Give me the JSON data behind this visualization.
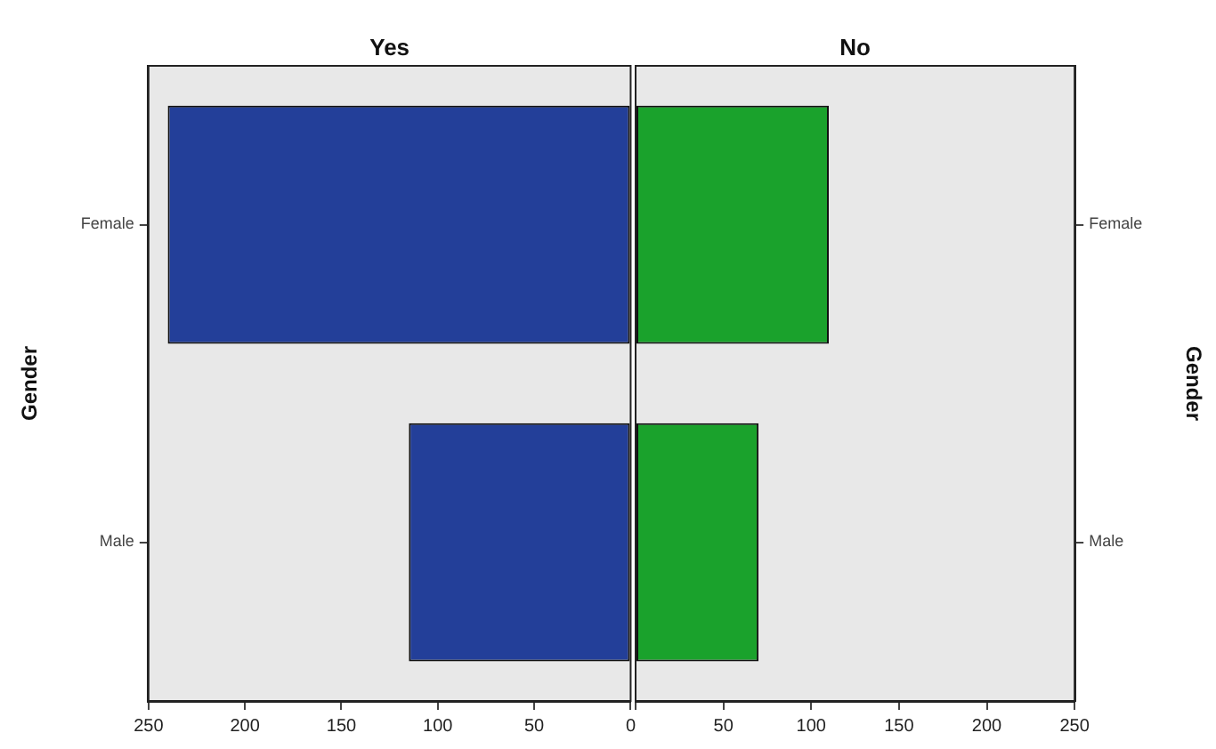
{
  "chart_data": [
    {
      "type": "bar",
      "orientation": "horizontal",
      "title": "Yes",
      "ylabel": "Gender",
      "categories": [
        "Female",
        "Male"
      ],
      "series": [
        {
          "color": "#233f99",
          "values": [
            240,
            115
          ]
        }
      ],
      "xlim": [
        250,
        0
      ],
      "xticks": [
        250,
        200,
        150,
        100,
        50,
        0
      ],
      "legend": false
    },
    {
      "type": "bar",
      "orientation": "horizontal",
      "title": "No",
      "y2label": "Gender",
      "categories": [
        "Female",
        "Male"
      ],
      "series": [
        {
          "color": "#1aa22c",
          "values": [
            110,
            70
          ]
        }
      ],
      "xlim": [
        0,
        250
      ],
      "xticks": [
        {
          "value": 0,
          "label": null
        },
        50,
        100,
        150,
        200,
        250
      ],
      "legend": false
    }
  ]
}
